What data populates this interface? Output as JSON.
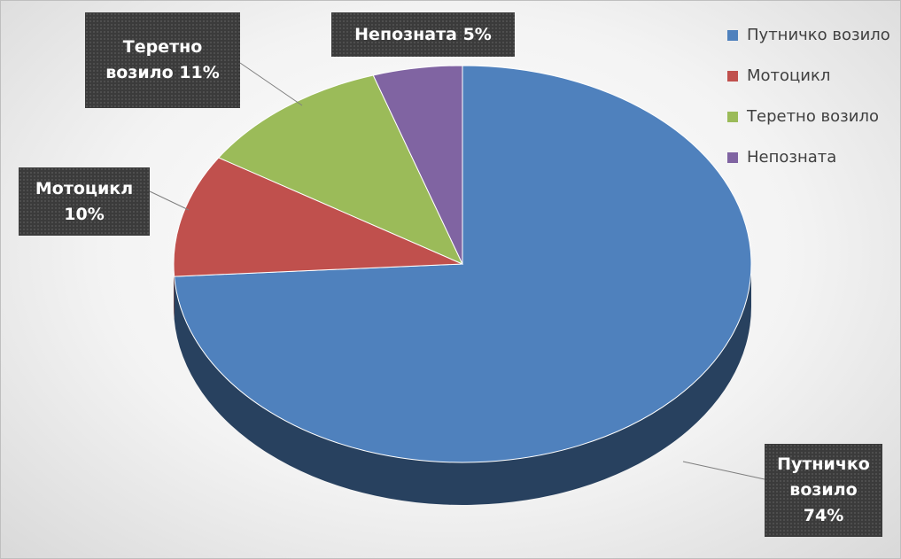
{
  "chart_data": {
    "type": "pie",
    "categories": [
      "Путничко возило",
      "Мотоцикл",
      "Теретно возило",
      "Непозната"
    ],
    "values": [
      74,
      10,
      11,
      5
    ],
    "value_labels": [
      "74%",
      "10%",
      "11%",
      "5%"
    ],
    "colors": [
      "#4f81bd",
      "#c0504d",
      "#9bbb59",
      "#8064a2"
    ],
    "legend": "right"
  }
}
